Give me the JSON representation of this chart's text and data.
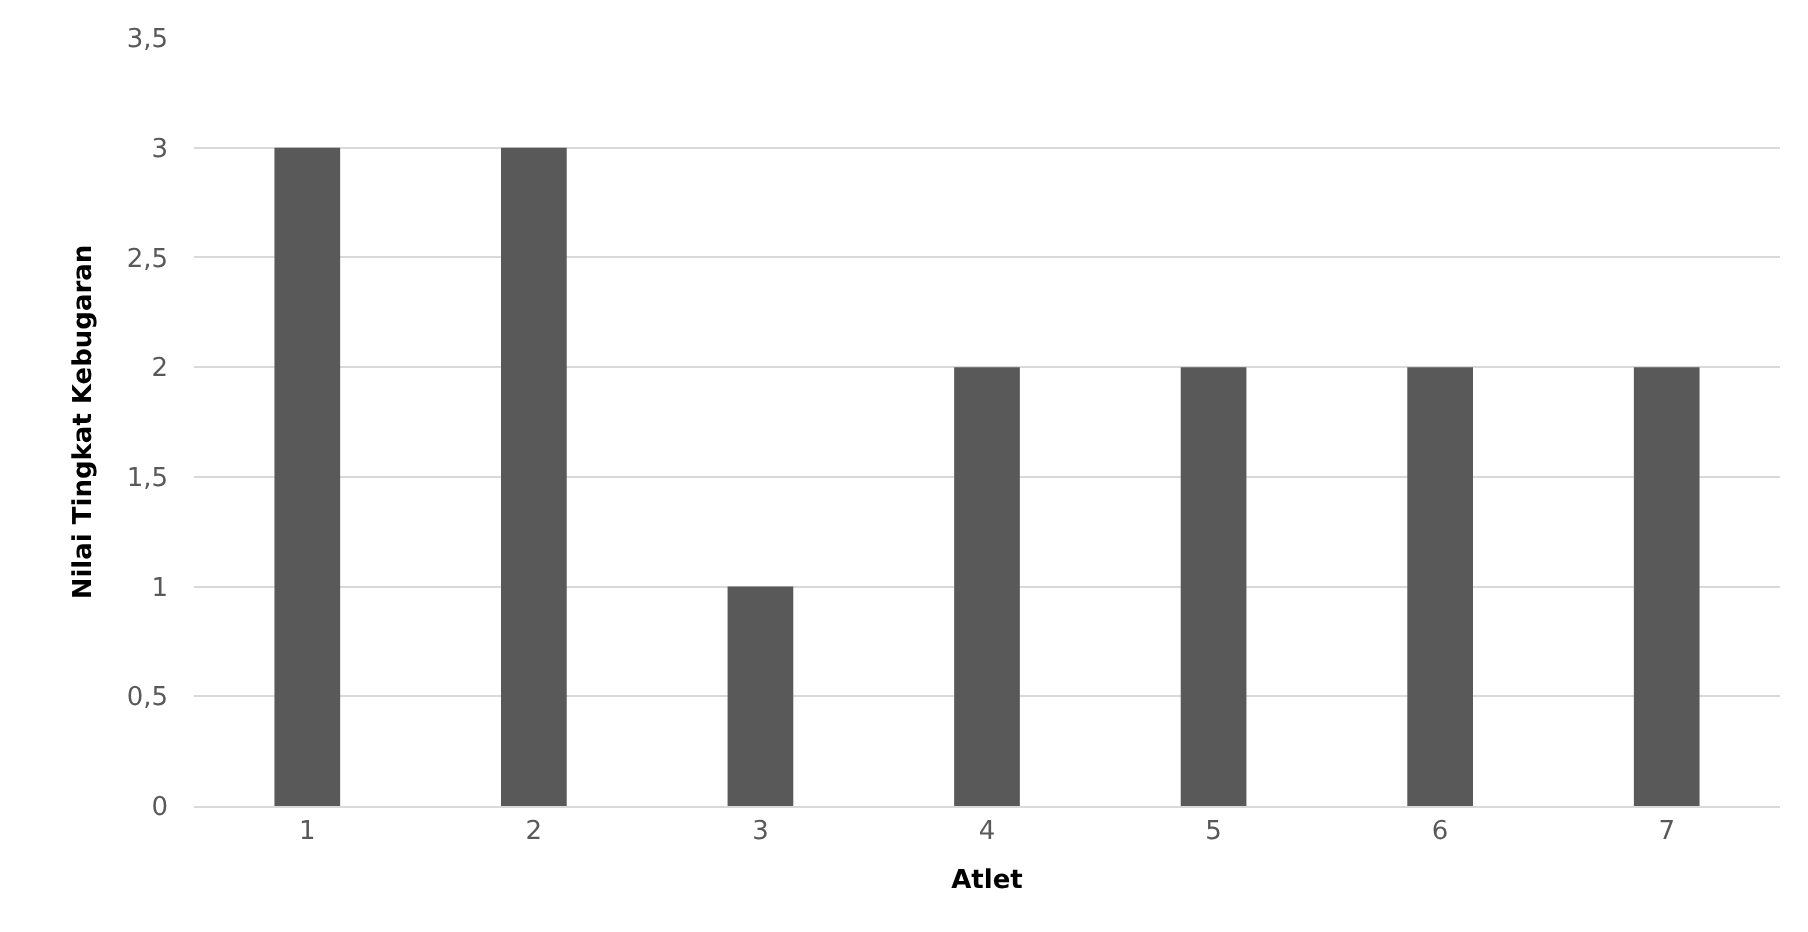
{
  "chart_data": {
    "type": "bar",
    "xlabel": "Atlet",
    "ylabel": "Nilai Tingkat Kebugaran",
    "categories": [
      "1",
      "2",
      "3",
      "4",
      "5",
      "6",
      "7"
    ],
    "series": [
      {
        "color": "#595959",
        "values": [
          3,
          3,
          1,
          2,
          2,
          2,
          2
        ]
      }
    ],
    "ylim": [
      0,
      3.5
    ],
    "yticks": [
      0,
      {
        "value": 0.5,
        "label": "0,5"
      },
      1,
      {
        "value": 1.5,
        "label": "1,5"
      },
      2,
      {
        "value": 2.5,
        "label": "2,5"
      },
      3,
      {
        "value": 3.5,
        "label": "3,5"
      }
    ],
    "grid": "y"
  }
}
